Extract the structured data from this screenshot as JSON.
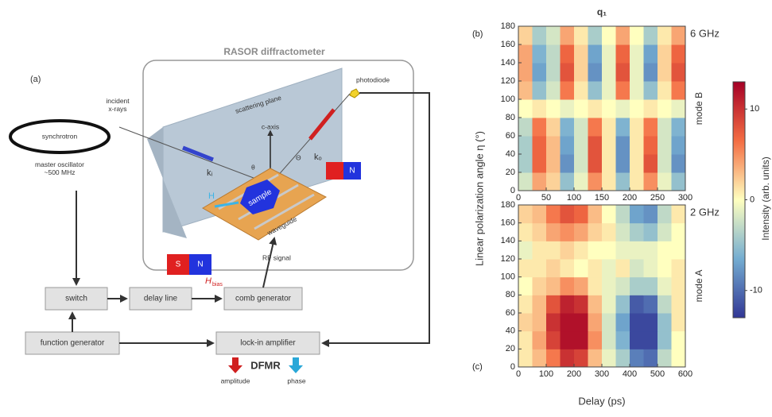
{
  "diagram": {
    "panel_label": "(a)",
    "enclosure_title": "RASOR diffractometer",
    "incident": "incident\nx-rays",
    "synchrotron": "synchrotron",
    "oscillator": "master oscillator\n~500 MHz",
    "scattering_plane": "scattering plane",
    "c_axis": "c-axis",
    "photodiode": "photodiode",
    "k_in": "kᵢ",
    "k_out": "kₒ",
    "theta_in": "θ",
    "theta_out": "Θ",
    "sample": "sample",
    "waveguide": "waveguide",
    "h_field": "H",
    "h_bias": "H",
    "h_bias_sub": "bias",
    "north_left": "N",
    "south_left": "S",
    "north_right": "N",
    "rf_signal": "RF signal",
    "switch": "switch",
    "delay_line": "delay line",
    "comb_generator": "comb generator",
    "function_generator": "function generator",
    "lockin": "lock-in amplifier",
    "dfmr": "DFMR",
    "amplitude": "amplitude",
    "phase": "phase"
  },
  "chart_data": [
    {
      "type": "heatmap",
      "title": "q₁",
      "panel_label": "(b)",
      "frequency": "6 GHz",
      "mode": "mode B",
      "xlim": [
        0,
        300
      ],
      "xticks": [
        0,
        50,
        100,
        150,
        200,
        250,
        300
      ],
      "ylim": [
        0,
        180
      ],
      "yticks": [
        0,
        20,
        40,
        60,
        80,
        100,
        120,
        140,
        160,
        180
      ],
      "values": [
        [
          -2,
          4,
          2,
          -5,
          -1,
          5,
          1,
          -5,
          1,
          5,
          -1,
          -5
        ],
        [
          -4,
          7,
          3,
          -8,
          -2,
          8,
          1,
          -8,
          1,
          8,
          -2,
          -8
        ],
        [
          -4,
          7,
          3,
          -7,
          -2,
          8,
          1,
          -8,
          1,
          7,
          -2,
          -7
        ],
        [
          -3,
          6,
          2,
          -6,
          -2,
          6,
          1,
          -6,
          1,
          6,
          -2,
          -6
        ],
        [
          0,
          1,
          0,
          -1,
          0,
          1,
          0,
          -1,
          0,
          1,
          0,
          -1
        ],
        [
          3,
          -5,
          -2,
          6,
          1,
          -5,
          -1,
          6,
          -1,
          -5,
          1,
          6
        ],
        [
          4,
          -7,
          -3,
          8,
          2,
          -8,
          -1,
          8,
          -1,
          -8,
          2,
          8
        ],
        [
          4,
          -6,
          -3,
          7,
          2,
          -7,
          -1,
          7,
          -1,
          -7,
          2,
          7
        ],
        [
          2,
          -4,
          -2,
          4,
          1,
          -4,
          0,
          4,
          0,
          -4,
          1,
          4
        ]
      ]
    },
    {
      "type": "heatmap",
      "panel_label": "(c)",
      "frequency": "2 GHz",
      "mode": "mode A",
      "xlabel": "Delay (ps)",
      "ylabel": "Linear polarization angle η (°)",
      "xlim": [
        0,
        600
      ],
      "xticks": [
        0,
        100,
        200,
        300,
        400,
        500,
        600
      ],
      "ylim": [
        0,
        180
      ],
      "yticks": [
        0,
        20,
        40,
        60,
        80,
        100,
        120,
        140,
        160,
        180
      ],
      "values": [
        [
          1,
          3,
          6,
          10,
          9,
          3,
          -1,
          -4,
          -9,
          -10,
          -3,
          0
        ],
        [
          1,
          4,
          9,
          12,
          12,
          5,
          -2,
          -6,
          -12,
          -12,
          -5,
          0
        ],
        [
          2,
          3,
          10,
          12,
          12,
          4,
          -2,
          -7,
          -12,
          -12,
          -5,
          1
        ],
        [
          1,
          3,
          8,
          11,
          10,
          3,
          -1,
          -5,
          -11,
          -10,
          -3,
          1
        ],
        [
          0,
          2,
          3,
          5,
          4,
          1,
          -1,
          -2,
          -4,
          -4,
          -1,
          1
        ],
        [
          1,
          1,
          2,
          1,
          0,
          1,
          -1,
          1,
          -2,
          -1,
          0,
          1
        ],
        [
          -1,
          1,
          1,
          2,
          1,
          0,
          0,
          -1,
          -1,
          -1,
          0,
          0
        ],
        [
          1,
          2,
          4,
          5,
          4,
          2,
          1,
          -2,
          -4,
          -5,
          -2,
          0
        ],
        [
          2,
          3,
          6,
          8,
          7,
          3,
          0,
          -3,
          -7,
          -8,
          -3,
          1
        ]
      ]
    }
  ],
  "colorbar": {
    "label": "Intensity (arb. units)",
    "clim": [
      -13,
      13
    ],
    "ticks": [
      -10,
      0,
      10
    ],
    "colors": [
      "#313695",
      "#74add1",
      "#ffffbf",
      "#f46d43",
      "#a50026"
    ]
  }
}
